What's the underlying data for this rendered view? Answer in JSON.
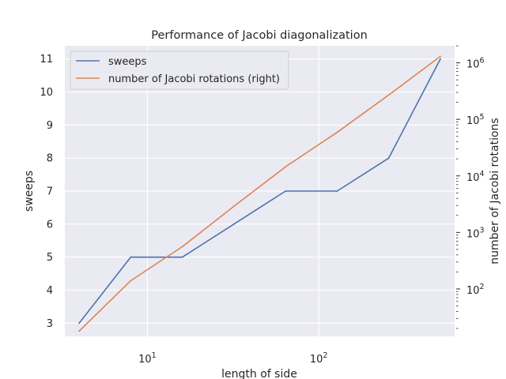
{
  "chart_data": {
    "type": "line",
    "title": "Performance of Jacobi diagonalization",
    "xlabel": "length of side",
    "ylabel": "sweeps",
    "y2label": "number of Jacobi rotations",
    "xscale": "log",
    "y2scale": "log",
    "x": [
      4,
      8,
      16,
      32,
      64,
      128,
      256,
      512
    ],
    "xlim": [
      3.3,
      620
    ],
    "ylim": [
      2.6,
      11.4
    ],
    "y2lim": [
      14.5,
      2000000
    ],
    "grid": true,
    "legend_position": "top-left",
    "xticks": [
      {
        "value": 10,
        "base": "10",
        "exp": "1"
      },
      {
        "value": 100,
        "base": "10",
        "exp": "2"
      }
    ],
    "yticks": [
      3,
      4,
      5,
      6,
      7,
      8,
      9,
      10,
      11
    ],
    "y2ticks": [
      {
        "value": 100,
        "base": "10",
        "exp": "2"
      },
      {
        "value": 1000,
        "base": "10",
        "exp": "3"
      },
      {
        "value": 10000,
        "base": "10",
        "exp": "4"
      },
      {
        "value": 100000,
        "base": "10",
        "exp": "5"
      },
      {
        "value": 1000000,
        "base": "10",
        "exp": "6"
      }
    ],
    "series": [
      {
        "name": "sweeps",
        "axis": "left",
        "color": "#4c72b0",
        "values": [
          3,
          5,
          5,
          6,
          7,
          7,
          8,
          11
        ]
      },
      {
        "name": "number of Jacobi rotations (right)",
        "axis": "right",
        "color": "#dd8452",
        "values": [
          18,
          140,
          560,
          2900,
          14500,
          59000,
          270000,
          1300000
        ]
      }
    ]
  }
}
